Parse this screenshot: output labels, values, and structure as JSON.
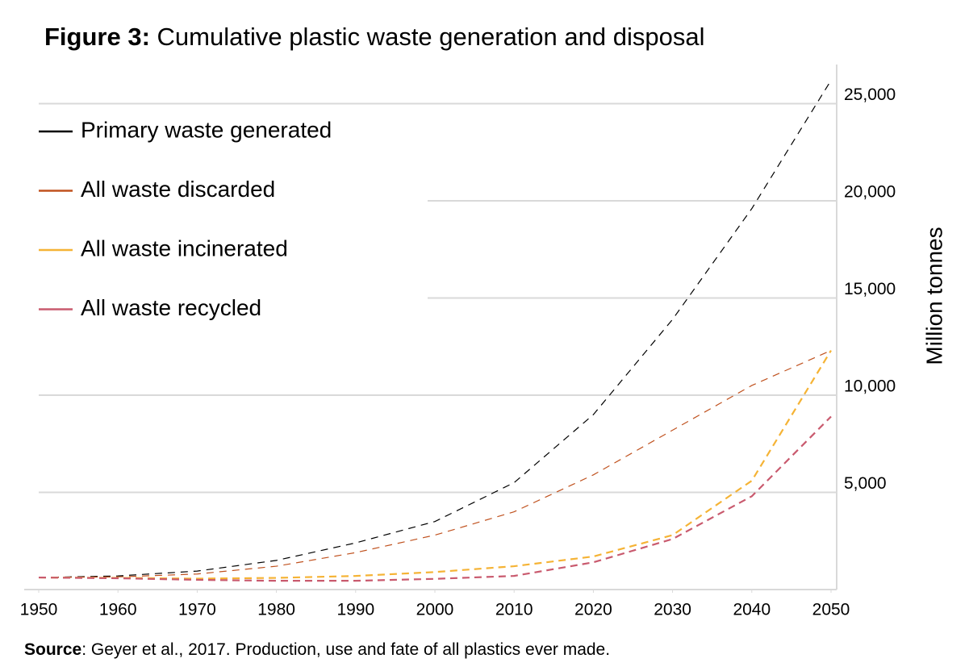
{
  "chart_data": {
    "type": "line",
    "title_label": "Figure 3:",
    "title": "Cumulative plastic waste generation and disposal",
    "y_label": "Million tonnes",
    "source_label": "Source",
    "source": ": Geyer et al., 2017. Production, use and fate of all plastics ever made.",
    "x": [
      1950,
      1960,
      1970,
      1980,
      1990,
      2000,
      2010,
      2020,
      2030,
      2040,
      2050
    ],
    "series": [
      {
        "name": "Primary waste generated",
        "color": "#000000",
        "values": [
          620,
          700,
          950,
          1500,
          2400,
          3500,
          5500,
          9000,
          13900,
          19600,
          26200
        ]
      },
      {
        "name": "All waste discarded",
        "color": "#c0521f",
        "values": [
          620,
          650,
          800,
          1200,
          1900,
          2800,
          4000,
          5900,
          8200,
          10500,
          12300
        ]
      },
      {
        "name": "All waste incinerated",
        "color": "#f5b335",
        "values": [
          620,
          600,
          560,
          600,
          700,
          900,
          1200,
          1700,
          2800,
          5600,
          12300
        ]
      },
      {
        "name": "All waste recycled",
        "color": "#c95a6e",
        "values": [
          620,
          580,
          500,
          450,
          450,
          550,
          700,
          1400,
          2600,
          4800,
          8900
        ]
      }
    ],
    "xlim": [
      1950,
      2050
    ],
    "xticks": [
      1950,
      1960,
      1970,
      1980,
      1990,
      2000,
      2010,
      2020,
      2030,
      2040,
      2050
    ],
    "ylim": [
      0,
      27000
    ],
    "yticks": [
      {
        "value": 5000,
        "label": "5,000"
      },
      {
        "value": 10000,
        "label": "10,000"
      },
      {
        "value": 15000,
        "label": "15,000"
      },
      {
        "value": 20000,
        "label": "20,000"
      },
      {
        "value": 25000,
        "label": "25,000"
      }
    ],
    "grid": true,
    "legend": "top-left"
  }
}
